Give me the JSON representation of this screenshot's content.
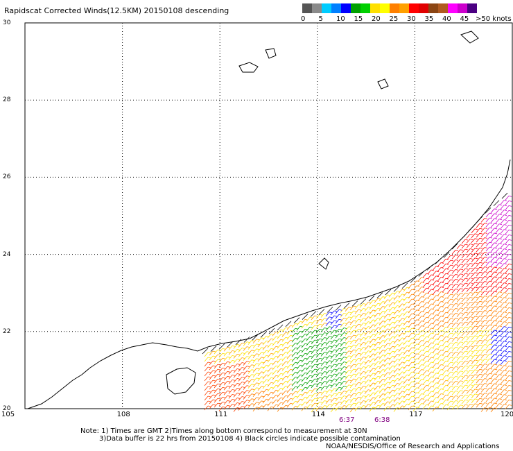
{
  "title": "Rapidscat Corrected Winds(12.5KM) 20150108 descending",
  "legend": {
    "colors": [
      "#555555",
      "#8a8a8a",
      "#00ccff",
      "#0080ff",
      "#0000ff",
      "#00a000",
      "#00d000",
      "#ffe000",
      "#ffff00",
      "#ff8000",
      "#ffa000",
      "#ff0000",
      "#e00000",
      "#8b4513",
      "#b05a20",
      "#ff00ff",
      "#cc00cc",
      "#4b0082"
    ],
    "labels": [
      "0",
      "5",
      "10",
      "15",
      "20",
      "25",
      "30",
      "35",
      "40",
      "45",
      ">50 knots"
    ]
  },
  "axes": {
    "lon_ticks": [
      "105",
      "108",
      "111",
      "114",
      "117",
      "120"
    ],
    "lat_ticks": [
      "30",
      "28",
      "26",
      "24",
      "22",
      "20"
    ],
    "lat_range": [
      20,
      30
    ],
    "lon_range": [
      105,
      120
    ],
    "grid": true
  },
  "times": [
    "6:37",
    "6:38"
  ],
  "notes": {
    "line1": "Note: 1) Times are GMT 2)Times along bottom correspond to measurement at 30N",
    "line2": "3)Data buffer is 22 hrs from 20150108 4) Black circles indicate possible contamination",
    "credit": "NOAA/NESDIS/Office of Research and Applications"
  }
}
